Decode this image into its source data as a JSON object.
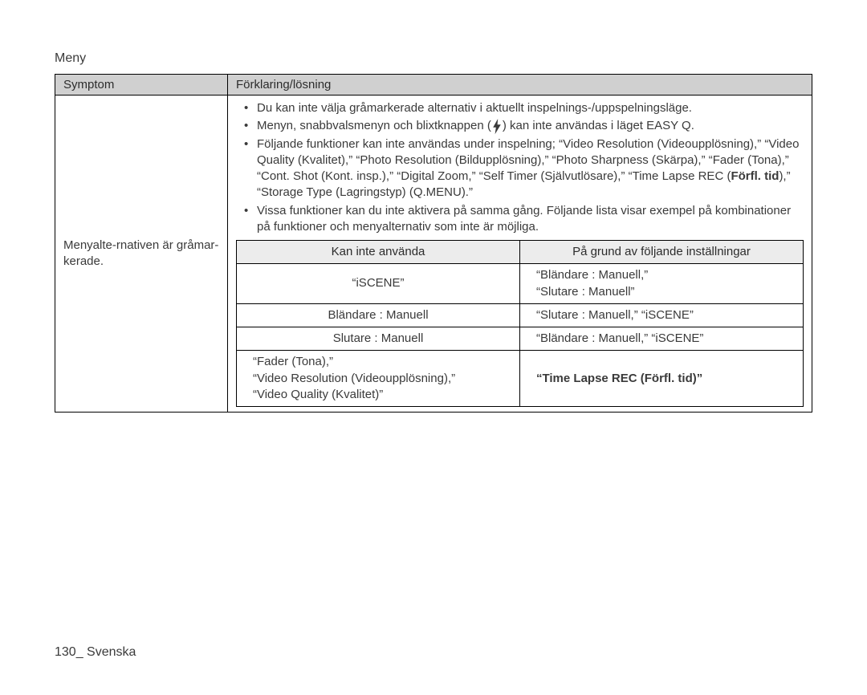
{
  "section_title": "Meny",
  "table": {
    "header": {
      "symptom": "Symptom",
      "explanation": "Förklaring/lösning"
    },
    "symptom_text": "Menyalte-rnativen är gråmar-kerade.",
    "bullets": [
      "Du kan inte välja gråmarkerade alternativ i aktuellt inspelnings-/uppspelningsläge.",
      "Menyn, snabbvalsmenyn och blixtknappen ({flash}) kan inte användas i läget EASY Q.",
      "Följande funktioner kan inte användas under inspelning; “Video Resolution (Videoupplösning),” “Video Quality (Kvalitet),” “Photo Resolution (Bildupplösning),” “Photo Sharpness (Skärpa),” “Fader (Tona),” “Cont. Shot (Kont. insp.),” “Digital Zoom,” “Self Timer (Självutlösare),” “Time Lapse REC (Förfl. tid),” “Storage Type (Lagringstyp) (Q.MENU).”",
      "Vissa funktioner kan du inte aktivera på samma gång. Följande lista visar exempel på kombinationer på funktioner och menyalternativ som inte är möjliga."
    ],
    "bullet_bold_phrase": "(Förfl. tid)",
    "inner": {
      "header": {
        "cannot_use": "Kan inte använda",
        "due_to": "På grund av följande inställningar"
      },
      "rows": [
        {
          "cannot": "“iSCENE”",
          "due": "“Bländare : Manuell,”\n“Slutare : Manuell”"
        },
        {
          "cannot": "Bländare : Manuell",
          "due": "“Slutare : Manuell,” “iSCENE”"
        },
        {
          "cannot": "Slutare : Manuell",
          "due": "“Bländare : Manuell,” “iSCENE”"
        },
        {
          "cannot": "“Fader (Tona),”\n“Video Resolution (Videoupplösning),”\n“Video Quality (Kvalitet)”",
          "due": "“Time Lapse REC (Förfl. tid)”",
          "due_bold": true
        }
      ]
    }
  },
  "footer": "130_ Svenska",
  "colors": {
    "header_bg": "#d0d0d0",
    "inner_header_bg": "#ececec",
    "text": "#3a3a3a",
    "border": "#000000",
    "background": "#ffffff"
  }
}
